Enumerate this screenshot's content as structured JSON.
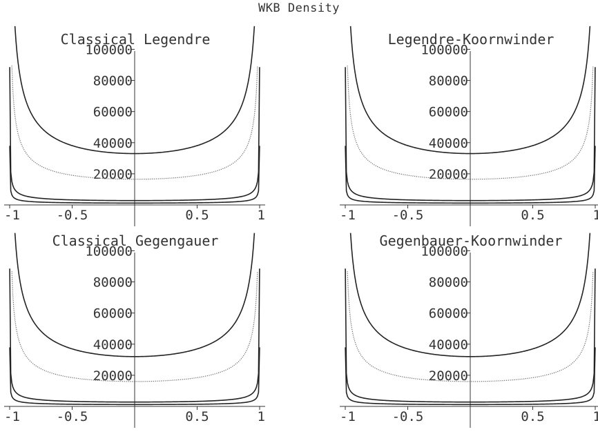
{
  "title": "WKB Density",
  "chart_data": [
    {
      "type": "line",
      "title": "Classical Legendre",
      "x_ticks": [
        "-1",
        "-0.5",
        "0.5",
        "1"
      ],
      "y_ticks": [
        "20000",
        "40000",
        "60000",
        "80000",
        "100000"
      ],
      "xlim": [
        -1,
        1
      ],
      "ylim": [
        0,
        115000
      ],
      "series": [
        {
          "style": "solid",
          "a": 33000
        },
        {
          "style": "dotted",
          "a": 16500
        },
        {
          "style": "solid",
          "a": 2800
        },
        {
          "style": "solid",
          "a": 1200
        }
      ]
    },
    {
      "type": "line",
      "title": "Legendre-Koornwinder",
      "x_ticks": [
        "-1",
        "-0.5",
        "0.5",
        "1"
      ],
      "y_ticks": [
        "20000",
        "40000",
        "60000",
        "80000",
        "100000"
      ],
      "xlim": [
        -1,
        1
      ],
      "ylim": [
        0,
        115000
      ],
      "series": [
        {
          "style": "solid",
          "a": 33000
        },
        {
          "style": "dotted",
          "a": 16500
        },
        {
          "style": "solid",
          "a": 2800
        },
        {
          "style": "solid",
          "a": 1200
        }
      ]
    },
    {
      "type": "line",
      "title": "Classical Gegengauer",
      "x_ticks": [
        "-1",
        "-0.5",
        "0.5",
        "1"
      ],
      "y_ticks": [
        "20000",
        "40000",
        "60000",
        "80000",
        "100000"
      ],
      "xlim": [
        -1,
        1
      ],
      "ylim": [
        0,
        115000
      ],
      "series": [
        {
          "style": "solid",
          "a": 32000
        },
        {
          "style": "dotted",
          "a": 16000
        },
        {
          "style": "solid",
          "a": 2800
        },
        {
          "style": "solid",
          "a": 1200
        }
      ]
    },
    {
      "type": "line",
      "title": "Gegenbauer-Koornwinder",
      "x_ticks": [
        "-1",
        "-0.5",
        "0.5",
        "1"
      ],
      "y_ticks": [
        "20000",
        "40000",
        "60000",
        "80000",
        "100000"
      ],
      "xlim": [
        -1,
        1
      ],
      "ylim": [
        0,
        115000
      ],
      "series": [
        {
          "style": "solid",
          "a": 32000
        },
        {
          "style": "dotted",
          "a": 16000
        },
        {
          "style": "solid",
          "a": 2800
        },
        {
          "style": "solid",
          "a": 1200
        }
      ]
    }
  ]
}
